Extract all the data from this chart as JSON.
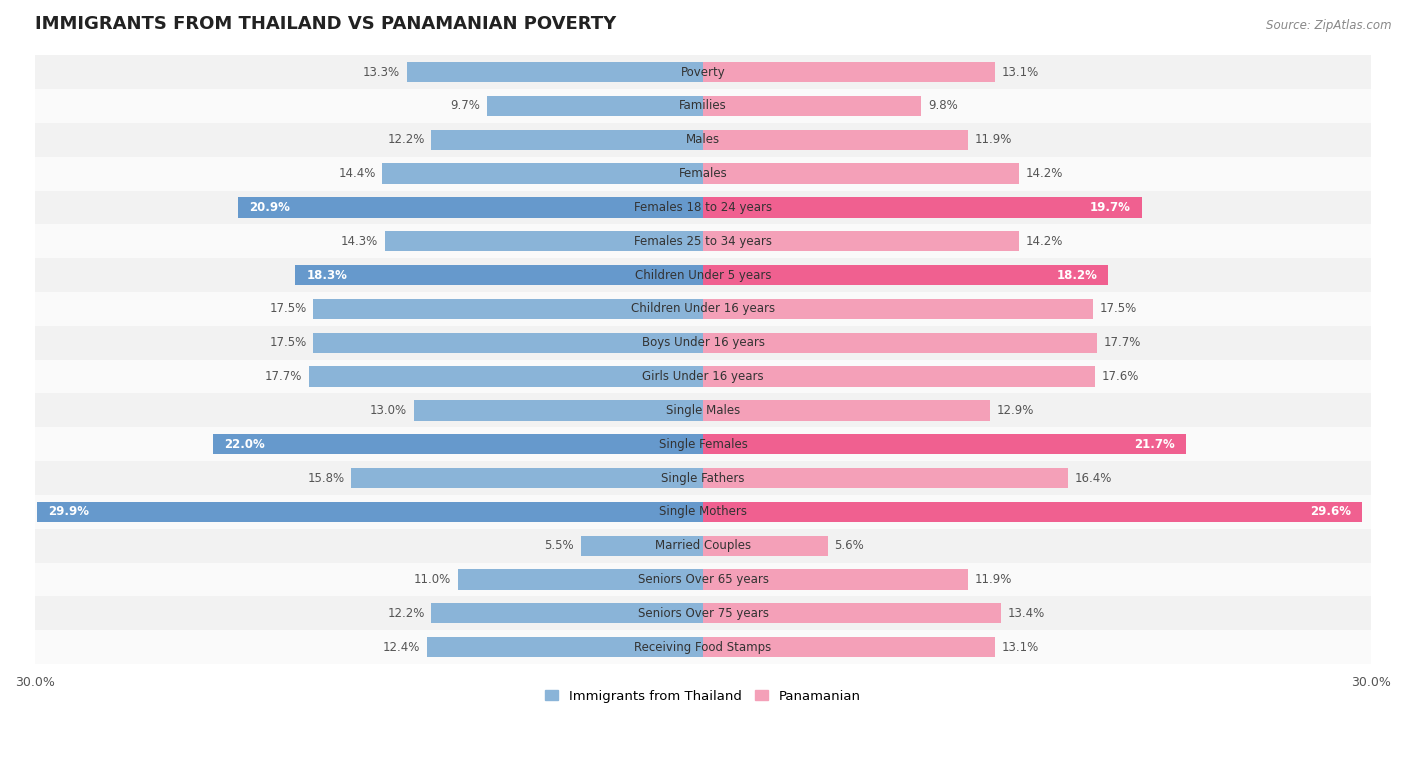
{
  "title": "IMMIGRANTS FROM THAILAND VS PANAMANIAN POVERTY",
  "source": "Source: ZipAtlas.com",
  "categories": [
    "Poverty",
    "Families",
    "Males",
    "Females",
    "Females 18 to 24 years",
    "Females 25 to 34 years",
    "Children Under 5 years",
    "Children Under 16 years",
    "Boys Under 16 years",
    "Girls Under 16 years",
    "Single Males",
    "Single Females",
    "Single Fathers",
    "Single Mothers",
    "Married Couples",
    "Seniors Over 65 years",
    "Seniors Over 75 years",
    "Receiving Food Stamps"
  ],
  "thailand_values": [
    13.3,
    9.7,
    12.2,
    14.4,
    20.9,
    14.3,
    18.3,
    17.5,
    17.5,
    17.7,
    13.0,
    22.0,
    15.8,
    29.9,
    5.5,
    11.0,
    12.2,
    12.4
  ],
  "panamanian_values": [
    13.1,
    9.8,
    11.9,
    14.2,
    19.7,
    14.2,
    18.2,
    17.5,
    17.7,
    17.6,
    12.9,
    21.7,
    16.4,
    29.6,
    5.6,
    11.9,
    13.4,
    13.1
  ],
  "thailand_color": "#8ab4d8",
  "panamanian_color": "#f4a0b8",
  "thailand_highlight_indices": [
    4,
    6,
    11,
    13
  ],
  "panamanian_highlight_indices": [
    4,
    6,
    11,
    13
  ],
  "thailand_highlight_color": "#6699cc",
  "panamanian_highlight_color": "#f06090",
  "row_bg_even": "#f2f2f2",
  "row_bg_odd": "#fafafa",
  "xlim": 30.0,
  "legend_label_thailand": "Immigrants from Thailand",
  "legend_label_panamanian": "Panamanian",
  "bar_height": 0.6,
  "title_fontsize": 13,
  "label_fontsize": 8.5,
  "value_fontsize": 8.5,
  "axis_tick_fontsize": 9,
  "fig_bg": "#ffffff"
}
